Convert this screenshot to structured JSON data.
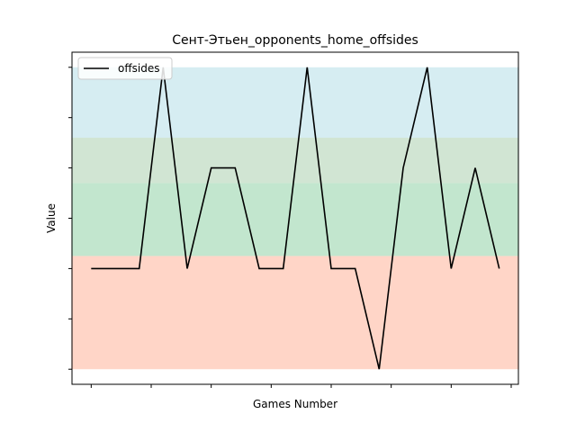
{
  "chart_data": {
    "type": "line",
    "title": "Сент-Этьен_opponents_home_offsides",
    "xlabel": "Games Number",
    "ylabel": "Value",
    "legend": {
      "position": "top-left",
      "entries": [
        "offsides"
      ]
    },
    "grid": false,
    "show_tick_labels": false,
    "x": [
      0,
      1,
      2,
      3,
      4,
      5,
      6,
      7,
      8,
      9,
      10,
      11,
      12,
      13,
      14,
      15,
      16,
      17
    ],
    "xlim": [
      -0.8,
      17.8
    ],
    "x_ticks": [
      0,
      2.5,
      5,
      7.5,
      10,
      12.5,
      15,
      17.5
    ],
    "ylim": [
      -0.3,
      6.3
    ],
    "y_ticks": [
      0,
      1,
      2,
      3,
      4,
      5,
      6
    ],
    "bands": [
      {
        "from": 0,
        "to": 2.25,
        "color": "#ffb399",
        "opacity": 0.55
      },
      {
        "from": 2.25,
        "to": 3.7,
        "color": "#8fd1a6",
        "opacity": 0.55
      },
      {
        "from": 3.7,
        "to": 4.6,
        "color": "#b2d3b6",
        "opacity": 0.6
      },
      {
        "from": 4.6,
        "to": 6,
        "color": "#b5dfe8",
        "opacity": 0.55
      }
    ],
    "series": [
      {
        "name": "offsides",
        "color": "#000000",
        "values": [
          2,
          2,
          2,
          6,
          2,
          4,
          4,
          2,
          2,
          6,
          2,
          2,
          0,
          4,
          6,
          2,
          4,
          2
        ]
      }
    ]
  }
}
